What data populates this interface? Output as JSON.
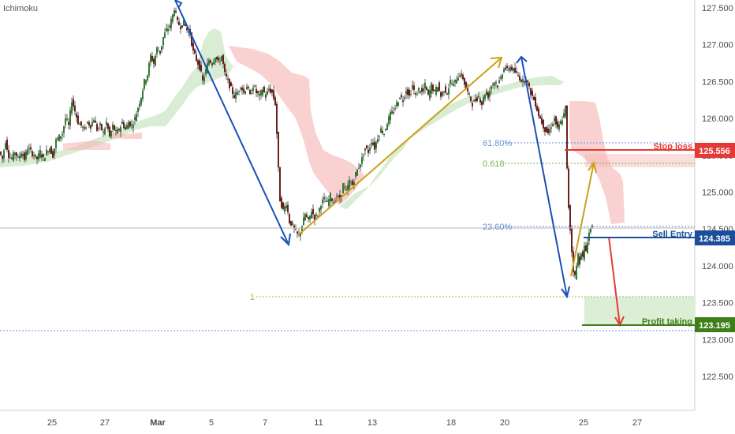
{
  "indicator_label": "Ichimoku",
  "chart_data": {
    "type": "candlestick",
    "indicator": "Ichimoku",
    "ylim": [
      122.0,
      127.6
    ],
    "y_ticks": [
      "127.500",
      "127.000",
      "126.500",
      "126.000",
      "125.500",
      "125.000",
      "124.500",
      "124.000",
      "123.500",
      "123.000",
      "122.500"
    ],
    "x_ticks": [
      "25",
      "27",
      "Mar",
      "5",
      "7",
      "11",
      "13",
      "18",
      "20",
      "25",
      "27"
    ],
    "levels": {
      "stop_loss": {
        "label": "Stop loss",
        "value": "125.556",
        "color": "#e53935"
      },
      "sell_entry": {
        "label": "Sell Entry",
        "value": "124.385",
        "color": "#1b4f9c"
      },
      "profit_taking": {
        "label": "Profit taking",
        "value": "123.195",
        "color": "#3f7f1a"
      }
    },
    "fib_labels": {
      "f618p": "61.80%",
      "f618": "0.618",
      "f236p": "23.60%",
      "f1": "1"
    },
    "close_path": [
      [
        0,
        125.55
      ],
      [
        4,
        125.45
      ],
      [
        8,
        125.7
      ],
      [
        12,
        125.5
      ],
      [
        16,
        125.45
      ],
      [
        20,
        125.55
      ],
      [
        24,
        125.45
      ],
      [
        28,
        125.55
      ],
      [
        32,
        125.45
      ],
      [
        36,
        125.6
      ],
      [
        40,
        125.55
      ],
      [
        44,
        125.5
      ],
      [
        48,
        125.45
      ],
      [
        52,
        125.55
      ],
      [
        56,
        125.45
      ],
      [
        60,
        125.55
      ],
      [
        64,
        125.6
      ],
      [
        68,
        125.5
      ],
      [
        72,
        125.7
      ],
      [
        76,
        125.75
      ],
      [
        80,
        125.8
      ],
      [
        84,
        126.0
      ],
      [
        88,
        125.9
      ],
      [
        92,
        126.25
      ],
      [
        96,
        126.1
      ],
      [
        100,
        125.95
      ],
      [
        104,
        125.9
      ],
      [
        108,
        125.85
      ],
      [
        112,
        125.95
      ],
      [
        116,
        125.9
      ],
      [
        120,
        126.0
      ],
      [
        124,
        125.85
      ],
      [
        128,
        125.9
      ],
      [
        132,
        125.8
      ],
      [
        136,
        125.95
      ],
      [
        140,
        125.75
      ],
      [
        144,
        125.9
      ],
      [
        148,
        125.8
      ],
      [
        152,
        125.85
      ],
      [
        156,
        125.95
      ],
      [
        160,
        125.85
      ],
      [
        164,
        125.95
      ],
      [
        168,
        125.9
      ],
      [
        172,
        126.0
      ],
      [
        176,
        126.15
      ],
      [
        180,
        126.3
      ],
      [
        184,
        126.5
      ],
      [
        188,
        126.6
      ],
      [
        192,
        126.85
      ],
      [
        196,
        126.75
      ],
      [
        200,
        126.95
      ],
      [
        204,
        126.9
      ],
      [
        208,
        127.1
      ],
      [
        212,
        127.2
      ],
      [
        216,
        127.25
      ],
      [
        220,
        127.4
      ],
      [
        222,
        127.5
      ],
      [
        226,
        127.3
      ],
      [
        230,
        127.25
      ],
      [
        234,
        127.3
      ],
      [
        238,
        127.2
      ],
      [
        242,
        127.15
      ],
      [
        246,
        126.9
      ],
      [
        250,
        126.8
      ],
      [
        254,
        126.7
      ],
      [
        258,
        126.5
      ],
      [
        262,
        126.65
      ],
      [
        266,
        126.8
      ],
      [
        270,
        126.75
      ],
      [
        274,
        126.85
      ],
      [
        278,
        126.75
      ],
      [
        282,
        126.85
      ],
      [
        286,
        126.6
      ],
      [
        290,
        126.5
      ],
      [
        294,
        126.4
      ],
      [
        298,
        126.3
      ],
      [
        302,
        126.35
      ],
      [
        306,
        126.45
      ],
      [
        310,
        126.35
      ],
      [
        314,
        126.45
      ],
      [
        318,
        126.3
      ],
      [
        322,
        126.45
      ],
      [
        326,
        126.35
      ],
      [
        330,
        126.3
      ],
      [
        334,
        126.4
      ],
      [
        338,
        126.3
      ],
      [
        342,
        126.4
      ],
      [
        346,
        126.35
      ],
      [
        350,
        126.2
      ],
      [
        352,
        125.8
      ],
      [
        354,
        125.3
      ],
      [
        356,
        124.9
      ],
      [
        360,
        124.75
      ],
      [
        364,
        124.85
      ],
      [
        368,
        124.6
      ],
      [
        372,
        124.55
      ],
      [
        376,
        124.45
      ],
      [
        380,
        124.4
      ],
      [
        384,
        124.55
      ],
      [
        388,
        124.7
      ],
      [
        392,
        124.6
      ],
      [
        396,
        124.75
      ],
      [
        400,
        124.65
      ],
      [
        404,
        124.7
      ],
      [
        408,
        124.85
      ],
      [
        412,
        124.9
      ],
      [
        416,
        124.85
      ],
      [
        420,
        124.95
      ],
      [
        424,
        124.85
      ],
      [
        428,
        124.95
      ],
      [
        432,
        124.9
      ],
      [
        436,
        125.1
      ],
      [
        440,
        125.0
      ],
      [
        444,
        125.15
      ],
      [
        448,
        125.1
      ],
      [
        452,
        125.25
      ],
      [
        456,
        125.35
      ],
      [
        460,
        125.45
      ],
      [
        464,
        125.6
      ],
      [
        468,
        125.55
      ],
      [
        472,
        125.7
      ],
      [
        476,
        125.6
      ],
      [
        480,
        125.75
      ],
      [
        484,
        125.85
      ],
      [
        488,
        125.8
      ],
      [
        492,
        125.95
      ],
      [
        496,
        126.05
      ],
      [
        500,
        126.1
      ],
      [
        504,
        126.2
      ],
      [
        508,
        126.3
      ],
      [
        512,
        126.25
      ],
      [
        516,
        126.4
      ],
      [
        520,
        126.3
      ],
      [
        524,
        126.45
      ],
      [
        528,
        126.3
      ],
      [
        532,
        126.4
      ],
      [
        536,
        126.35
      ],
      [
        540,
        126.45
      ],
      [
        544,
        126.3
      ],
      [
        548,
        126.45
      ],
      [
        552,
        126.35
      ],
      [
        556,
        126.45
      ],
      [
        560,
        126.3
      ],
      [
        564,
        126.4
      ],
      [
        568,
        126.35
      ],
      [
        572,
        126.5
      ],
      [
        576,
        126.45
      ],
      [
        580,
        126.55
      ],
      [
        584,
        126.6
      ],
      [
        588,
        126.55
      ],
      [
        592,
        126.4
      ],
      [
        596,
        126.3
      ],
      [
        600,
        126.2
      ],
      [
        604,
        126.25
      ],
      [
        608,
        126.3
      ],
      [
        612,
        126.2
      ],
      [
        616,
        126.35
      ],
      [
        620,
        126.3
      ],
      [
        624,
        126.45
      ],
      [
        628,
        126.5
      ],
      [
        632,
        126.45
      ],
      [
        636,
        126.55
      ],
      [
        640,
        126.7
      ],
      [
        644,
        126.65
      ],
      [
        648,
        126.7
      ],
      [
        652,
        126.65
      ],
      [
        656,
        126.6
      ],
      [
        660,
        126.55
      ],
      [
        664,
        126.5
      ],
      [
        668,
        126.55
      ],
      [
        672,
        126.4
      ],
      [
        676,
        126.3
      ],
      [
        680,
        126.2
      ],
      [
        684,
        126.05
      ],
      [
        688,
        125.95
      ],
      [
        692,
        125.85
      ],
      [
        696,
        125.8
      ],
      [
        700,
        125.9
      ],
      [
        704,
        126.0
      ],
      [
        708,
        125.85
      ],
      [
        712,
        125.95
      ],
      [
        716,
        126.05
      ],
      [
        718,
        126.15
      ],
      [
        720,
        125.3
      ],
      [
        722,
        124.8
      ],
      [
        724,
        124.5
      ],
      [
        726,
        124.2
      ],
      [
        728,
        123.95
      ],
      [
        730,
        123.85
      ],
      [
        732,
        124.0
      ],
      [
        734,
        124.15
      ],
      [
        736,
        124.05
      ],
      [
        738,
        124.2
      ],
      [
        740,
        124.1
      ],
      [
        742,
        124.25
      ],
      [
        744,
        124.2
      ],
      [
        746,
        124.35
      ],
      [
        748,
        124.45
      ],
      [
        750,
        124.5
      ],
      [
        752,
        124.55
      ]
    ]
  }
}
